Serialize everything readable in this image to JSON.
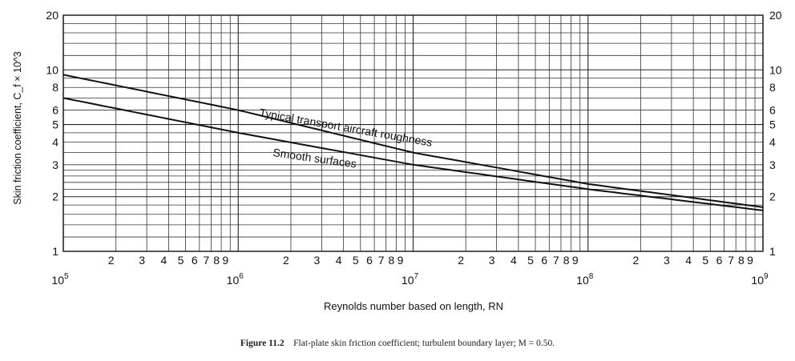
{
  "chart_data": {
    "type": "line",
    "title": "",
    "xlabel": "Reynolds number based on length, RN",
    "ylabel": "Skin friction coefficient, C_f × 10^3",
    "x_scale": "log",
    "y_scale": "log",
    "xlim": [
      100000,
      1000000000
    ],
    "ylim": [
      1,
      20
    ],
    "grid": true,
    "x_major_ticks": [
      {
        "value": 100000,
        "base": "10",
        "exp": "5"
      },
      {
        "value": 1000000,
        "base": "10",
        "exp": "6"
      },
      {
        "value": 10000000,
        "base": "10",
        "exp": "7"
      },
      {
        "value": 100000000,
        "base": "10",
        "exp": "8"
      },
      {
        "value": 1000000000,
        "base": "10",
        "exp": "9"
      }
    ],
    "x_minor_tick_labels": [
      "2",
      "3",
      "4",
      "5",
      "6",
      "7",
      "8",
      "9"
    ],
    "y_left_ticks": [
      {
        "value": 1,
        "label": "1"
      },
      {
        "value": 2,
        "label": "2"
      },
      {
        "value": 3,
        "label": "3"
      },
      {
        "value": 4,
        "label": "4"
      },
      {
        "value": 5,
        "label": "5"
      },
      {
        "value": 6,
        "label": "6"
      },
      {
        "value": 8,
        "label": "8"
      },
      {
        "value": 10,
        "label": "10"
      },
      {
        "value": 20,
        "label": "20"
      }
    ],
    "y_right_ticks": [
      {
        "value": 1,
        "label": "1"
      },
      {
        "value": 2,
        "label": "2"
      },
      {
        "value": 3,
        "label": "3"
      },
      {
        "value": 4,
        "label": "4"
      },
      {
        "value": 5,
        "label": "5"
      },
      {
        "value": 6,
        "label": "6"
      },
      {
        "value": 8,
        "label": "8"
      },
      {
        "value": 10,
        "label": "10"
      },
      {
        "value": 20,
        "label": "20"
      }
    ],
    "series": [
      {
        "name": "Typical transport aircraft roughness",
        "x": [
          100000,
          1000000,
          10000000,
          100000000,
          1000000000
        ],
        "y": [
          9.4,
          6.0,
          3.5,
          2.35,
          1.75
        ]
      },
      {
        "name": "Smooth surfaces",
        "x": [
          100000,
          1000000,
          10000000,
          100000000,
          1000000000
        ],
        "y": [
          7.0,
          4.5,
          3.0,
          2.2,
          1.68
        ]
      }
    ],
    "caption": {
      "figure_label": "Figure 11.2",
      "text": "Flat-plate skin friction coefficient; turbulent boundary layer; M = 0.50."
    }
  }
}
